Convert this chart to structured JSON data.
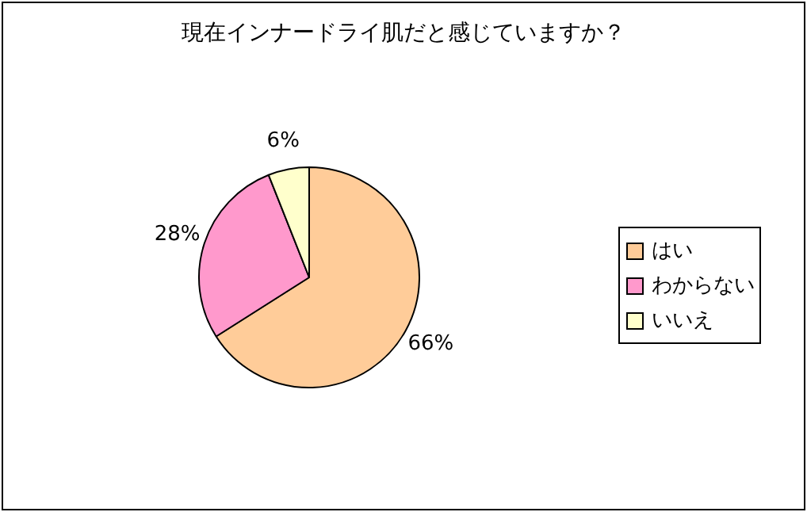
{
  "chart_data": {
    "type": "pie",
    "title": "現在インナードライ肌だと感じていますか？",
    "categories": [
      "はい",
      "わからない",
      "いいえ"
    ],
    "values": [
      66,
      28,
      6
    ],
    "value_labels": [
      "66%",
      "28%",
      "6%"
    ],
    "colors": [
      "#ffcc99",
      "#ff99cc",
      "#ffffcc"
    ],
    "legend": "right"
  }
}
